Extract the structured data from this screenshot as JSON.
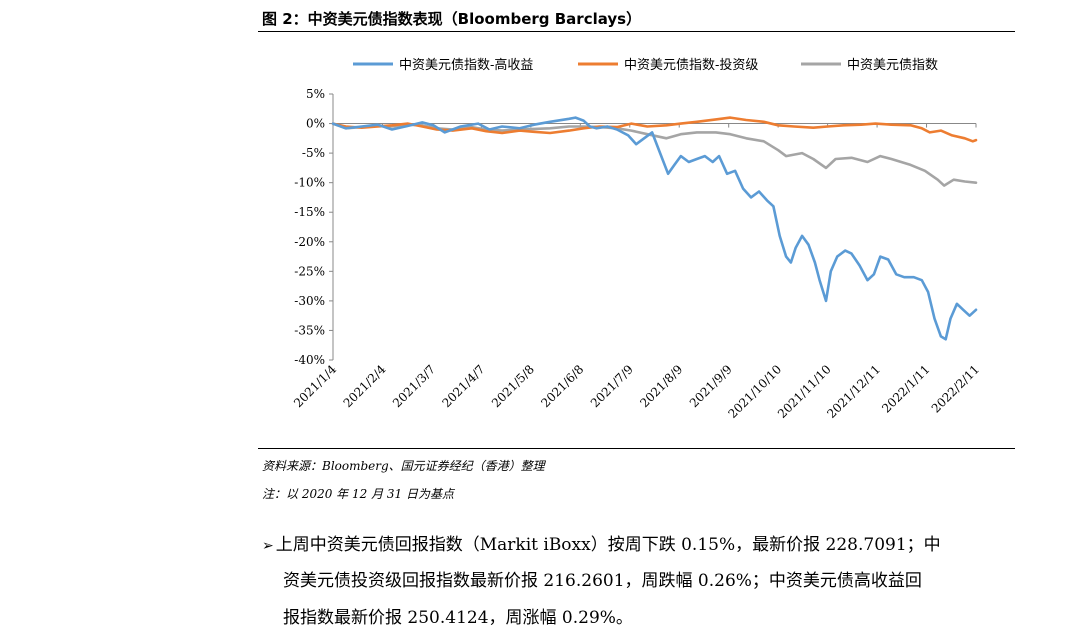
{
  "figure": {
    "title": "图 2：中资美元债指数表现（Bloomberg Barclays）",
    "source_note": "资料来源：Bloomberg、国元证券经纪（香港）整理",
    "base_note": "注：以 2020 年 12 月 31 日为基点"
  },
  "paragraph": {
    "bullet": "➢",
    "line1": "上周中资美元债回报指数（Markit iBoxx）按周下跌 0.15%，最新价报 228.7091；中",
    "line2": "资美元债投资级回报指数最新价报 216.2601，周跌幅 0.26%；中资美元债高收益回",
    "line3": "报指数最新价报 250.4124，周涨幅 0.29%。"
  },
  "chart_data": {
    "type": "line",
    "title": "",
    "xlabel": "",
    "ylabel": "",
    "ylim": [
      -40,
      5
    ],
    "yticks": [
      5,
      0,
      -5,
      -10,
      -15,
      -20,
      -25,
      -30,
      -35,
      -40
    ],
    "ytick_labels": [
      "5%",
      "0%",
      "-5%",
      "-10%",
      "-15%",
      "-20%",
      "-25%",
      "-30%",
      "-35%",
      "-40%"
    ],
    "xlim": [
      "2021-01-04",
      "2022-02-11"
    ],
    "x_tick_labels": [
      "2021/1/4",
      "2021/2/4",
      "2021/3/7",
      "2021/4/7",
      "2021/5/8",
      "2021/6/8",
      "2021/7/9",
      "2021/8/9",
      "2021/9/9",
      "2021/10/10",
      "2021/11/10",
      "2021/12/11",
      "2022/1/11",
      "2022/2/11"
    ],
    "x_tick_dates": [
      "2021-01-04",
      "2021-02-04",
      "2021-03-07",
      "2021-04-07",
      "2021-05-08",
      "2021-06-08",
      "2021-07-09",
      "2021-08-09",
      "2021-09-09",
      "2021-10-10",
      "2021-11-10",
      "2021-12-11",
      "2022-01-11",
      "2022-02-11"
    ],
    "grid": false,
    "legend_position": "top",
    "series": [
      {
        "name": "中资美元债指数-高收益",
        "color": "#5B9BD5",
        "points": [
          [
            "2021-01-04",
            0
          ],
          [
            "2021-01-12",
            -0.8
          ],
          [
            "2021-01-22",
            -0.5
          ],
          [
            "2021-02-01",
            -0.2
          ],
          [
            "2021-02-10",
            -1.0
          ],
          [
            "2021-02-20",
            -0.4
          ],
          [
            "2021-03-01",
            0.2
          ],
          [
            "2021-03-08",
            -0.3
          ],
          [
            "2021-03-15",
            -1.5
          ],
          [
            "2021-03-25",
            -0.5
          ],
          [
            "2021-04-05",
            0.0
          ],
          [
            "2021-04-12",
            -1.0
          ],
          [
            "2021-04-20",
            -0.5
          ],
          [
            "2021-05-01",
            -0.8
          ],
          [
            "2021-05-10",
            -0.2
          ],
          [
            "2021-05-20",
            0.3
          ],
          [
            "2021-06-01",
            0.8
          ],
          [
            "2021-06-05",
            1.0
          ],
          [
            "2021-06-10",
            0.5
          ],
          [
            "2021-06-14",
            -0.5
          ],
          [
            "2021-06-18",
            -0.8
          ],
          [
            "2021-06-25",
            -0.5
          ],
          [
            "2021-07-01",
            -1.0
          ],
          [
            "2021-07-08",
            -2.0
          ],
          [
            "2021-07-13",
            -3.5
          ],
          [
            "2021-07-18",
            -2.5
          ],
          [
            "2021-07-23",
            -1.5
          ],
          [
            "2021-07-28",
            -5.0
          ],
          [
            "2021-08-02",
            -8.5
          ],
          [
            "2021-08-06",
            -7.0
          ],
          [
            "2021-08-10",
            -5.5
          ],
          [
            "2021-08-15",
            -6.5
          ],
          [
            "2021-08-20",
            -6.0
          ],
          [
            "2021-08-25",
            -5.5
          ],
          [
            "2021-08-30",
            -6.5
          ],
          [
            "2021-09-03",
            -5.5
          ],
          [
            "2021-09-08",
            -8.5
          ],
          [
            "2021-09-13",
            -8.0
          ],
          [
            "2021-09-18",
            -11.0
          ],
          [
            "2021-09-23",
            -12.5
          ],
          [
            "2021-09-28",
            -11.5
          ],
          [
            "2021-10-03",
            -13.0
          ],
          [
            "2021-10-07",
            -14.0
          ],
          [
            "2021-10-11",
            -19.0
          ],
          [
            "2021-10-15",
            -22.5
          ],
          [
            "2021-10-18",
            -23.5
          ],
          [
            "2021-10-21",
            -21.0
          ],
          [
            "2021-10-25",
            -19.0
          ],
          [
            "2021-10-29",
            -20.5
          ],
          [
            "2021-11-02",
            -23.5
          ],
          [
            "2021-11-05",
            -26.5
          ],
          [
            "2021-11-09",
            -30.0
          ],
          [
            "2021-11-12",
            -25.0
          ],
          [
            "2021-11-16",
            -22.5
          ],
          [
            "2021-11-21",
            -21.5
          ],
          [
            "2021-11-25",
            -22.0
          ],
          [
            "2021-11-30",
            -24.0
          ],
          [
            "2021-12-05",
            -26.5
          ],
          [
            "2021-12-09",
            -25.5
          ],
          [
            "2021-12-13",
            -22.5
          ],
          [
            "2021-12-18",
            -23.0
          ],
          [
            "2021-12-23",
            -25.5
          ],
          [
            "2021-12-28",
            -26.0
          ],
          [
            "2022-01-03",
            -26.0
          ],
          [
            "2022-01-08",
            -26.5
          ],
          [
            "2022-01-12",
            -28.5
          ],
          [
            "2022-01-16",
            -33.0
          ],
          [
            "2022-01-20",
            -36.0
          ],
          [
            "2022-01-23",
            -36.5
          ],
          [
            "2022-01-26",
            -33.0
          ],
          [
            "2022-01-30",
            -30.5
          ],
          [
            "2022-02-03",
            -31.5
          ],
          [
            "2022-02-07",
            -32.5
          ],
          [
            "2022-02-11",
            -31.5
          ]
        ]
      },
      {
        "name": "中资美元债指数-投资级",
        "color": "#ED7D31",
        "points": [
          [
            "2021-01-04",
            0
          ],
          [
            "2021-01-12",
            -0.5
          ],
          [
            "2021-01-22",
            -0.7
          ],
          [
            "2021-02-01",
            -0.5
          ],
          [
            "2021-02-10",
            -0.3
          ],
          [
            "2021-02-20",
            0.0
          ],
          [
            "2021-03-01",
            -0.5
          ],
          [
            "2021-03-10",
            -1.0
          ],
          [
            "2021-03-20",
            -1.2
          ],
          [
            "2021-04-01",
            -0.8
          ],
          [
            "2021-04-10",
            -1.3
          ],
          [
            "2021-04-20",
            -1.6
          ],
          [
            "2021-05-01",
            -1.2
          ],
          [
            "2021-05-10",
            -1.4
          ],
          [
            "2021-05-20",
            -1.6
          ],
          [
            "2021-06-01",
            -1.2
          ],
          [
            "2021-06-10",
            -0.8
          ],
          [
            "2021-06-20",
            -0.5
          ],
          [
            "2021-07-01",
            -0.6
          ],
          [
            "2021-07-10",
            0.0
          ],
          [
            "2021-07-20",
            -0.5
          ],
          [
            "2021-08-01",
            -0.3
          ],
          [
            "2021-08-10",
            0.0
          ],
          [
            "2021-08-20",
            0.3
          ],
          [
            "2021-09-01",
            0.7
          ],
          [
            "2021-09-10",
            1.0
          ],
          [
            "2021-09-20",
            0.6
          ],
          [
            "2021-10-01",
            0.3
          ],
          [
            "2021-10-10",
            -0.3
          ],
          [
            "2021-10-20",
            -0.5
          ],
          [
            "2021-11-01",
            -0.7
          ],
          [
            "2021-11-10",
            -0.5
          ],
          [
            "2021-11-20",
            -0.3
          ],
          [
            "2021-12-01",
            -0.2
          ],
          [
            "2021-12-10",
            0.0
          ],
          [
            "2021-12-20",
            -0.2
          ],
          [
            "2022-01-01",
            -0.3
          ],
          [
            "2022-01-08",
            -0.8
          ],
          [
            "2022-01-13",
            -1.5
          ],
          [
            "2022-01-20",
            -1.2
          ],
          [
            "2022-01-27",
            -2.0
          ],
          [
            "2022-02-04",
            -2.5
          ],
          [
            "2022-02-09",
            -3.0
          ],
          [
            "2022-02-11",
            -2.8
          ]
        ]
      },
      {
        "name": "中资美元债指数",
        "color": "#A5A5A5",
        "points": [
          [
            "2021-01-04",
            0
          ],
          [
            "2021-01-12",
            -0.8
          ],
          [
            "2021-01-22",
            -0.6
          ],
          [
            "2021-02-01",
            -0.4
          ],
          [
            "2021-02-10",
            -0.5
          ],
          [
            "2021-02-20",
            -0.2
          ],
          [
            "2021-03-01",
            -0.3
          ],
          [
            "2021-03-10",
            -0.8
          ],
          [
            "2021-03-20",
            -1.0
          ],
          [
            "2021-04-01",
            -0.6
          ],
          [
            "2021-04-10",
            -1.0
          ],
          [
            "2021-04-20",
            -1.2
          ],
          [
            "2021-05-01",
            -1.0
          ],
          [
            "2021-05-10",
            -0.9
          ],
          [
            "2021-05-20",
            -0.8
          ],
          [
            "2021-06-01",
            -0.5
          ],
          [
            "2021-06-10",
            -0.5
          ],
          [
            "2021-06-20",
            -0.6
          ],
          [
            "2021-07-01",
            -0.8
          ],
          [
            "2021-07-10",
            -1.2
          ],
          [
            "2021-07-20",
            -1.8
          ],
          [
            "2021-08-01",
            -2.5
          ],
          [
            "2021-08-10",
            -1.8
          ],
          [
            "2021-08-20",
            -1.5
          ],
          [
            "2021-09-01",
            -1.5
          ],
          [
            "2021-09-10",
            -1.8
          ],
          [
            "2021-09-20",
            -2.5
          ],
          [
            "2021-10-01",
            -3.0
          ],
          [
            "2021-10-10",
            -4.5
          ],
          [
            "2021-10-15",
            -5.5
          ],
          [
            "2021-10-25",
            -5.0
          ],
          [
            "2021-11-01",
            -6.0
          ],
          [
            "2021-11-09",
            -7.5
          ],
          [
            "2021-11-15",
            -6.0
          ],
          [
            "2021-11-25",
            -5.8
          ],
          [
            "2021-12-05",
            -6.5
          ],
          [
            "2021-12-13",
            -5.5
          ],
          [
            "2021-12-20",
            -6.0
          ],
          [
            "2022-01-01",
            -7.0
          ],
          [
            "2022-01-10",
            -8.0
          ],
          [
            "2022-01-18",
            -9.5
          ],
          [
            "2022-01-22",
            -10.5
          ],
          [
            "2022-01-28",
            -9.5
          ],
          [
            "2022-02-04",
            -9.8
          ],
          [
            "2022-02-11",
            -10.0
          ]
        ]
      }
    ]
  }
}
